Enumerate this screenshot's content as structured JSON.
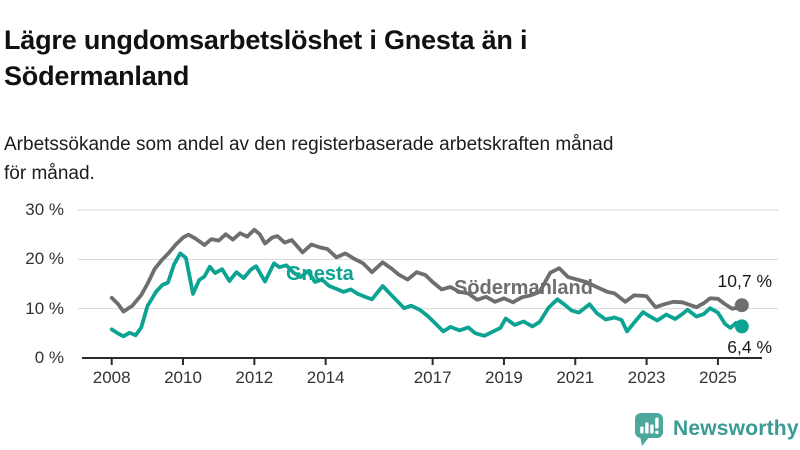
{
  "header": {
    "title": "Lägre ungdomsarbetslöshet i Gnesta än i\nSödermanland",
    "subtitle": "Arbetssökande som andel av den registerbaserade arbetskraften månad\nför månad."
  },
  "chart_data": {
    "type": "line",
    "title": "Lägre ungdomsarbetslöshet i Gnesta än i Södermanland",
    "subtitle": "Arbetssökande som andel av den registerbaserade arbetskraften månad för månad.",
    "unit": "%",
    "grid": "horizontal",
    "legend_position": "inline-labels-on-lines",
    "x_axis": {
      "ticks": [
        2008,
        2010,
        2012,
        2014,
        2017,
        2019,
        2021,
        2023,
        2025
      ],
      "tick_labels": [
        "2008",
        "2010",
        "2012",
        "2014",
        "2017",
        "2019",
        "2021",
        "2023",
        "2025"
      ],
      "range": [
        2007.7,
        2026.2
      ]
    },
    "y_axis": {
      "ticks": [
        0,
        10,
        20,
        30
      ],
      "tick_labels": [
        "0 %",
        "10 %",
        "20 %",
        "30 %"
      ],
      "range": [
        0,
        32
      ]
    },
    "colors": {
      "gnesta": "#0ca392",
      "sodermanland": "#6e6e6e",
      "gridline": "#d8d8d8",
      "axis": "#2b2b2b"
    },
    "series": [
      {
        "id": "gnesta",
        "name": "Gnesta",
        "color": "#0ca392",
        "end_label": "6,4 %",
        "end_value": 6.4,
        "points": [
          [
            2008.0,
            5.8
          ],
          [
            2008.17,
            5.0
          ],
          [
            2008.33,
            4.4
          ],
          [
            2008.5,
            5.1
          ],
          [
            2008.67,
            4.6
          ],
          [
            2008.83,
            6.2
          ],
          [
            2009.0,
            10.5
          ],
          [
            2009.25,
            13.5
          ],
          [
            2009.42,
            14.8
          ],
          [
            2009.58,
            15.3
          ],
          [
            2009.75,
            19.0
          ],
          [
            2009.92,
            21.2
          ],
          [
            2010.08,
            20.3
          ],
          [
            2010.28,
            13.0
          ],
          [
            2010.45,
            15.8
          ],
          [
            2010.6,
            16.5
          ],
          [
            2010.75,
            18.5
          ],
          [
            2010.9,
            17.2
          ],
          [
            2011.1,
            18.0
          ],
          [
            2011.3,
            15.6
          ],
          [
            2011.5,
            17.4
          ],
          [
            2011.7,
            16.2
          ],
          [
            2011.9,
            17.9
          ],
          [
            2012.05,
            18.6
          ],
          [
            2012.3,
            15.5
          ],
          [
            2012.55,
            19.2
          ],
          [
            2012.7,
            18.4
          ],
          [
            2012.9,
            18.8
          ],
          [
            2013.1,
            17.3
          ],
          [
            2013.3,
            16.4
          ],
          [
            2013.5,
            17.6
          ],
          [
            2013.7,
            15.4
          ],
          [
            2013.9,
            15.9
          ],
          [
            2014.1,
            14.6
          ],
          [
            2014.3,
            14.0
          ],
          [
            2014.5,
            13.4
          ],
          [
            2014.7,
            13.9
          ],
          [
            2014.9,
            13.0
          ],
          [
            2015.1,
            12.4
          ],
          [
            2015.3,
            11.9
          ],
          [
            2015.6,
            14.6
          ],
          [
            2015.8,
            13.1
          ],
          [
            2016.0,
            11.6
          ],
          [
            2016.2,
            10.1
          ],
          [
            2016.4,
            10.6
          ],
          [
            2016.65,
            9.7
          ],
          [
            2016.85,
            8.6
          ],
          [
            2017.05,
            7.2
          ],
          [
            2017.3,
            5.4
          ],
          [
            2017.5,
            6.3
          ],
          [
            2017.75,
            5.6
          ],
          [
            2018.0,
            6.2
          ],
          [
            2018.2,
            5.0
          ],
          [
            2018.45,
            4.5
          ],
          [
            2018.7,
            5.4
          ],
          [
            2018.9,
            6.1
          ],
          [
            2019.05,
            8.0
          ],
          [
            2019.3,
            6.7
          ],
          [
            2019.55,
            7.4
          ],
          [
            2019.8,
            6.4
          ],
          [
            2020.0,
            7.3
          ],
          [
            2020.25,
            10.2
          ],
          [
            2020.5,
            11.9
          ],
          [
            2020.7,
            10.8
          ],
          [
            2020.9,
            9.6
          ],
          [
            2021.1,
            9.2
          ],
          [
            2021.4,
            10.9
          ],
          [
            2021.6,
            9.1
          ],
          [
            2021.85,
            7.8
          ],
          [
            2022.1,
            8.2
          ],
          [
            2022.3,
            7.7
          ],
          [
            2022.45,
            5.4
          ],
          [
            2022.7,
            7.6
          ],
          [
            2022.9,
            9.3
          ],
          [
            2023.1,
            8.4
          ],
          [
            2023.3,
            7.6
          ],
          [
            2023.55,
            8.8
          ],
          [
            2023.8,
            7.9
          ],
          [
            2024.0,
            8.9
          ],
          [
            2024.15,
            9.8
          ],
          [
            2024.4,
            8.4
          ],
          [
            2024.6,
            8.9
          ],
          [
            2024.78,
            10.1
          ],
          [
            2025.0,
            9.2
          ],
          [
            2025.2,
            6.9
          ],
          [
            2025.35,
            6.1
          ],
          [
            2025.5,
            7.1
          ],
          [
            2025.67,
            6.4
          ]
        ]
      },
      {
        "id": "sodermanland",
        "name": "Södermanland",
        "color": "#6e6e6e",
        "end_label": "10,7 %",
        "end_value": 10.7,
        "points": [
          [
            2008.0,
            12.2
          ],
          [
            2008.17,
            11.0
          ],
          [
            2008.33,
            9.4
          ],
          [
            2008.58,
            10.6
          ],
          [
            2008.83,
            12.8
          ],
          [
            2009.0,
            15.0
          ],
          [
            2009.2,
            18.0
          ],
          [
            2009.4,
            19.8
          ],
          [
            2009.6,
            21.3
          ],
          [
            2009.8,
            23.0
          ],
          [
            2010.0,
            24.4
          ],
          [
            2010.15,
            25.0
          ],
          [
            2010.35,
            24.2
          ],
          [
            2010.6,
            22.9
          ],
          [
            2010.8,
            24.1
          ],
          [
            2011.0,
            23.8
          ],
          [
            2011.2,
            25.1
          ],
          [
            2011.4,
            24.0
          ],
          [
            2011.6,
            25.3
          ],
          [
            2011.8,
            24.6
          ],
          [
            2012.0,
            26.0
          ],
          [
            2012.15,
            25.1
          ],
          [
            2012.3,
            23.2
          ],
          [
            2012.5,
            24.4
          ],
          [
            2012.65,
            24.7
          ],
          [
            2012.85,
            23.4
          ],
          [
            2013.05,
            23.9
          ],
          [
            2013.35,
            21.4
          ],
          [
            2013.6,
            23.0
          ],
          [
            2013.85,
            22.4
          ],
          [
            2014.05,
            22.1
          ],
          [
            2014.3,
            20.4
          ],
          [
            2014.55,
            21.2
          ],
          [
            2014.8,
            20.1
          ],
          [
            2015.05,
            19.2
          ],
          [
            2015.3,
            17.4
          ],
          [
            2015.6,
            19.4
          ],
          [
            2015.85,
            18.1
          ],
          [
            2016.05,
            16.9
          ],
          [
            2016.3,
            15.9
          ],
          [
            2016.55,
            17.4
          ],
          [
            2016.8,
            16.8
          ],
          [
            2017.0,
            15.4
          ],
          [
            2017.25,
            13.9
          ],
          [
            2017.5,
            14.4
          ],
          [
            2017.75,
            13.4
          ],
          [
            2018.0,
            13.1
          ],
          [
            2018.25,
            11.8
          ],
          [
            2018.5,
            12.4
          ],
          [
            2018.75,
            11.4
          ],
          [
            2019.0,
            12.1
          ],
          [
            2019.25,
            11.3
          ],
          [
            2019.5,
            12.3
          ],
          [
            2019.75,
            12.7
          ],
          [
            2020.0,
            13.4
          ],
          [
            2020.3,
            17.3
          ],
          [
            2020.55,
            18.2
          ],
          [
            2020.8,
            16.4
          ],
          [
            2021.0,
            16.0
          ],
          [
            2021.3,
            15.4
          ],
          [
            2021.6,
            14.4
          ],
          [
            2021.9,
            13.4
          ],
          [
            2022.1,
            13.1
          ],
          [
            2022.4,
            11.4
          ],
          [
            2022.65,
            12.7
          ],
          [
            2022.9,
            12.6
          ],
          [
            2023.0,
            12.5
          ],
          [
            2023.25,
            10.3
          ],
          [
            2023.5,
            10.9
          ],
          [
            2023.75,
            11.4
          ],
          [
            2024.0,
            11.3
          ],
          [
            2024.4,
            10.3
          ],
          [
            2024.6,
            11.1
          ],
          [
            2024.78,
            12.1
          ],
          [
            2025.0,
            12.0
          ],
          [
            2025.2,
            10.9
          ],
          [
            2025.4,
            10.0
          ],
          [
            2025.55,
            10.2
          ],
          [
            2025.67,
            10.7
          ]
        ]
      }
    ]
  },
  "footer": {
    "brand": "Newsworthy",
    "brand_color": "#3a9a94",
    "icon": "newsworthy-chart-bubble-icon",
    "icon_color": "#4ca79d"
  }
}
